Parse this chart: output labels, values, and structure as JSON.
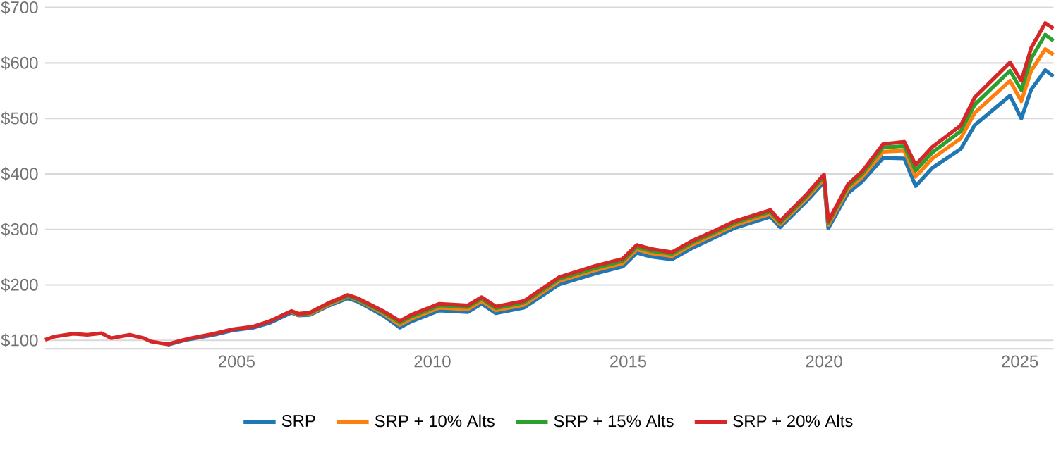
{
  "chart_data": {
    "type": "line",
    "x": [
      2000.11,
      2000.36,
      2000.83,
      2001.19,
      2001.55,
      2001.8,
      2002.27,
      2002.63,
      2002.81,
      2003.24,
      2003.71,
      2004.42,
      2004.89,
      2005.43,
      2005.86,
      2006.4,
      2006.58,
      2006.87,
      2007.37,
      2007.84,
      2008.09,
      2008.74,
      2009.17,
      2009.46,
      2010.18,
      2010.9,
      2011.26,
      2011.62,
      2012.34,
      2013.24,
      2014.14,
      2014.86,
      2015.22,
      2015.58,
      2016.12,
      2016.65,
      2017.19,
      2017.73,
      2018.63,
      2018.88,
      2019.53,
      2020.0,
      2020.11,
      2020.61,
      2020.97,
      2021.51,
      2022.05,
      2022.34,
      2022.77,
      2023.49,
      2023.85,
      2024.75,
      2025.04,
      2025.29,
      2025.65,
      2025.86
    ],
    "series": [
      {
        "name": "SRP",
        "color": "#1f77b4",
        "values": [
          null,
          null,
          null,
          null,
          null,
          null,
          null,
          null,
          null,
          92,
          101,
          110,
          118,
          123,
          132,
          150,
          145,
          146,
          163,
          176,
          170,
          145,
          123,
          134,
          154,
          151,
          166,
          149,
          159,
          201,
          220,
          233,
          258,
          251,
          246,
          267,
          285,
          303,
          323,
          304,
          349,
          385,
          302,
          365,
          386,
          429,
          428,
          378,
          411,
          445,
          488,
          541,
          500,
          552,
          587,
          576
        ]
      },
      {
        "name": "SRP + 10% Alts",
        "color": "#ff7f0e",
        "values": [
          null,
          null,
          null,
          null,
          null,
          null,
          null,
          null,
          null,
          null,
          null,
          null,
          null,
          null,
          null,
          151,
          146,
          148,
          165,
          179,
          173,
          149,
          128,
          139,
          159,
          156,
          171,
          154,
          164,
          207,
          226,
          239,
          264,
          257,
          252,
          273,
          290,
          308,
          328,
          309,
          354,
          391,
          308,
          372,
          394,
          440,
          442,
          395,
          428,
          464,
          510,
          568,
          531,
          586,
          625,
          615
        ]
      },
      {
        "name": "SRP + 15% Alts",
        "color": "#2ca02c",
        "values": [
          null,
          null,
          null,
          null,
          null,
          null,
          null,
          null,
          null,
          null,
          null,
          null,
          null,
          null,
          null,
          152,
          147,
          149,
          167,
          180,
          174,
          151,
          132,
          143,
          163,
          160,
          175,
          158,
          168,
          211,
          230,
          243,
          268,
          261,
          256,
          277,
          294,
          312,
          332,
          312,
          358,
          395,
          312,
          377,
          400,
          448,
          450,
          406,
          439,
          477,
          525,
          586,
          551,
          608,
          651,
          640
        ]
      },
      {
        "name": "SRP + 20% Alts",
        "color": "#d62728",
        "values": [
          101,
          107,
          112,
          110,
          113,
          104,
          110,
          104,
          98,
          93,
          102,
          112,
          120,
          125,
          135,
          153,
          148,
          150,
          168,
          182,
          176,
          153,
          135,
          146,
          166,
          163,
          178,
          161,
          171,
          214,
          234,
          247,
          272,
          265,
          259,
          280,
          297,
          315,
          335,
          315,
          361,
          399,
          315,
          381,
          404,
          454,
          458,
          416,
          449,
          487,
          538,
          601,
          568,
          627,
          672,
          662
        ]
      }
    ],
    "xlim": [
      2000.11,
      2025.86
    ],
    "xticks": [
      2005,
      2010,
      2015,
      2020,
      2025
    ],
    "ylim": [
      85,
      700
    ],
    "yticks": [
      {
        "value": 100,
        "label": "$100"
      },
      {
        "value": 200,
        "label": "$200"
      },
      {
        "value": 300,
        "label": "$300"
      },
      {
        "value": 400,
        "label": "$400"
      },
      {
        "value": 500,
        "label": "$500"
      },
      {
        "value": 600,
        "label": "$600"
      },
      {
        "value": 700,
        "label": "$700"
      }
    ],
    "grid": "y",
    "legend": "bottom",
    "marker": "none",
    "line_style": "solid"
  }
}
